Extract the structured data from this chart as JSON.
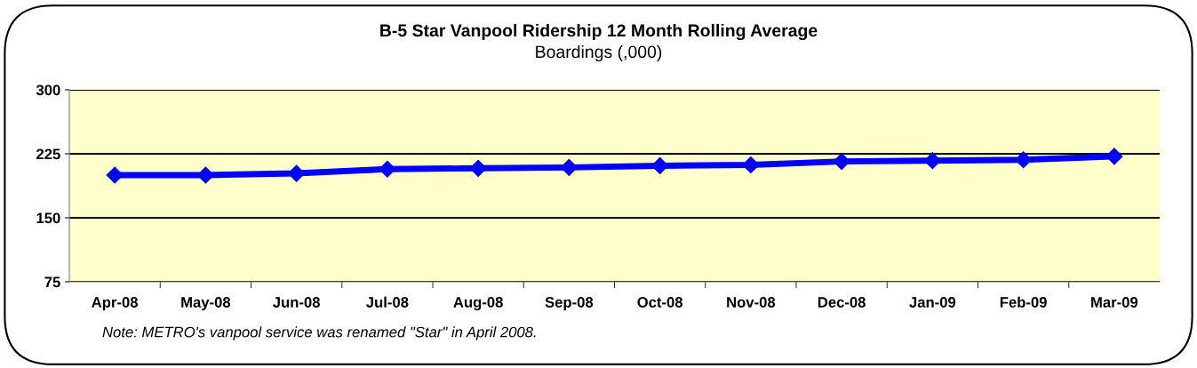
{
  "chart_data": {
    "type": "line",
    "title": "B-5 Star Vanpool Ridership 12 Month Rolling Average",
    "subtitle": "Boardings (,000)",
    "categories": [
      "Apr-08",
      "May-08",
      "Jun-08",
      "Jul-08",
      "Aug-08",
      "Sep-08",
      "Oct-08",
      "Nov-08",
      "Dec-08",
      "Jan-09",
      "Feb-09",
      "Mar-09"
    ],
    "series": [
      {
        "color": "#0000ff",
        "values": [
          200,
          200,
          202,
          207,
          208,
          209,
          211,
          212,
          216,
          217,
          218,
          222
        ]
      }
    ],
    "ylim": [
      75,
      300
    ],
    "yticks": [
      75,
      150,
      225,
      300
    ],
    "grid": "y",
    "marker": "diamond",
    "line_style": "solid",
    "legend": false,
    "annotations": [
      "Note: METRO's vanpool service was renamed \"Star\" in April 2008."
    ]
  }
}
